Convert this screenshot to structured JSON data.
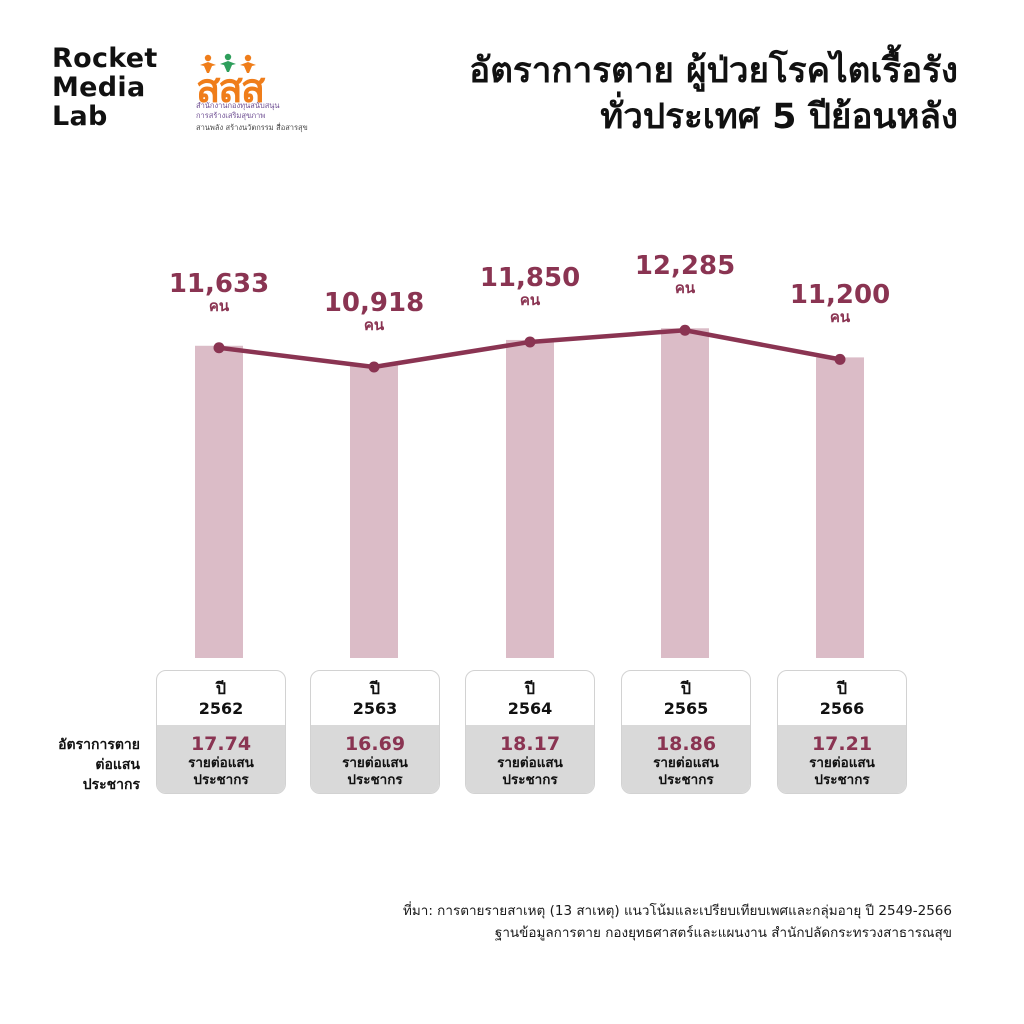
{
  "brand": {
    "line1": "Rocket",
    "line2": "Media",
    "line3": "Lab"
  },
  "logo": {
    "word": "สสส",
    "sub1": "สำนักงานกองทุนสนับสนุน",
    "sub2": "การสร้างเสริมสุขภาพ",
    "sub3": "สานพลัง สร้างนวัตกรรม สื่อสารสุข",
    "colors": {
      "orange": "#ef7d1a",
      "green": "#2e9e5b",
      "purple": "#6f4f93"
    }
  },
  "title": {
    "line1": "อัตราการตาย ผู้ป่วยโรคไตเรื้อรัง",
    "line2": "ทั่วประเทศ 5 ปีย้อนหลัง"
  },
  "row_label": {
    "line1": "อัตราการตาย",
    "line2": "ต่อแสน",
    "line3": "ประชากร"
  },
  "source": {
    "line1": "ที่มา: การตายรายสาเหตุ (13 สาเหตุ) แนวโน้มและเปรียบเทียบเพศและกลุ่มอายุ ปี 2549-2566",
    "line2": "ฐานข้อมูลการตาย กองยุทธศาสตร์และแผนงาน สำนักปลัดกระทรวงสาธารณสุข"
  },
  "colors": {
    "bar": "#dbbcc7",
    "line": "#8a3452",
    "box_fill": "#d9d9d9",
    "box_border": "#d2d2d2"
  },
  "chart_data": {
    "type": "bar",
    "title": "อัตราการตาย ผู้ป่วยโรคไตเรื้อรัง ทั่วประเทศ 5 ปีย้อนหลัง",
    "categories": [
      "2562",
      "2563",
      "2564",
      "2565",
      "2566"
    ],
    "year_prefix": "ปี",
    "deaths": {
      "values": [
        11633,
        10918,
        11850,
        12285,
        11200
      ],
      "labels": [
        "11,633",
        "10,918",
        "11,850",
        "12,285",
        "11,200"
      ],
      "unit": "คน"
    },
    "rates": {
      "values": [
        17.74,
        16.69,
        18.17,
        18.86,
        17.21
      ],
      "labels": [
        "17.74",
        "16.69",
        "18.17",
        "18.86",
        "17.21"
      ],
      "unit_line1": "รายต่อแสน",
      "unit_line2": "ประชากร"
    },
    "overlay_line": true,
    "grid": false
  }
}
